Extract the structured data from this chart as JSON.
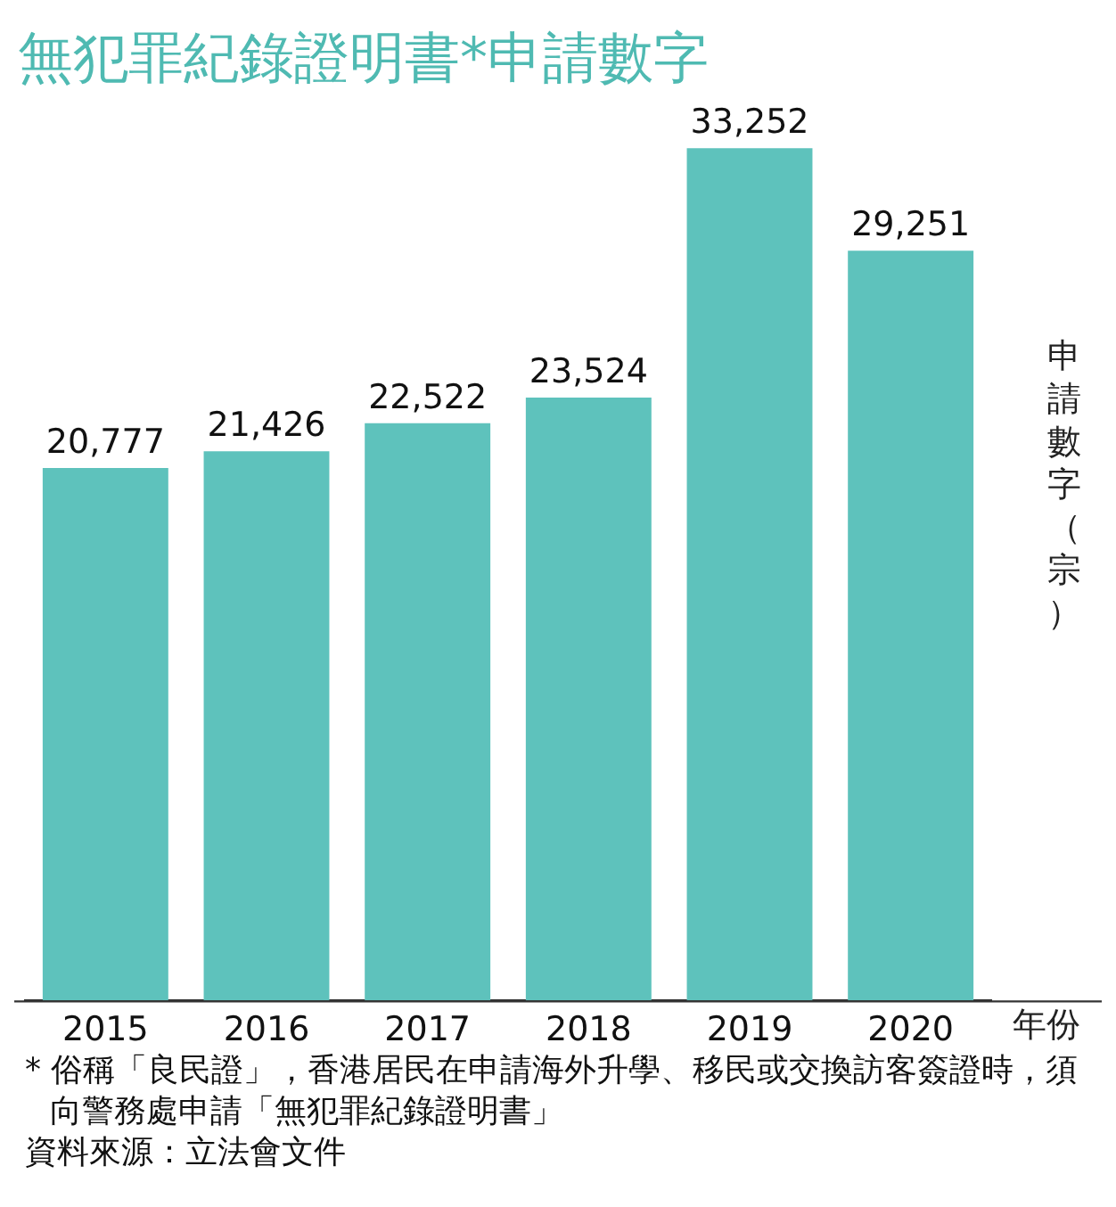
{
  "chart_data": {
    "type": "bar",
    "title": "無犯罪紀錄證明書*申請數字",
    "xlabel": "年份",
    "ylabel": "申請數字（宗）",
    "categories": [
      "2015",
      "2016",
      "2017",
      "2018",
      "2019",
      "2020"
    ],
    "values": [
      20777,
      21426,
      22522,
      23524,
      33252,
      29251
    ],
    "value_labels": [
      "20,777",
      "21,426",
      "22,522",
      "23,524",
      "33,252",
      "29,251"
    ],
    "color": "#5ec2bc",
    "grid": false,
    "legend": false,
    "annotations": [
      "* 俗稱「良民證」，香港居民在申請海外升學、移民或交換訪客簽證時，須向警務處申請「無犯罪紀錄證明書」",
      "資料來源：立法會文件"
    ]
  }
}
